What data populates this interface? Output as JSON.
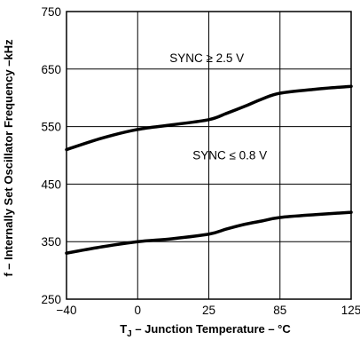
{
  "chart_data": {
    "type": "line",
    "title": "",
    "xlabel": "T",
    "xlabel_sub": "J",
    "xlabel_rest": " – Junction Temperature – °C",
    "ylabel": "f – Internally Set Oscillator Frequency –kHz",
    "x_tick_labels": [
      "−40",
      "0",
      "25",
      "85",
      "125"
    ],
    "y_tick_labels": [
      "250",
      "350",
      "450",
      "550",
      "650",
      "750"
    ],
    "y_ticks": [
      250,
      350,
      450,
      550,
      650,
      750
    ],
    "ylim": [
      250,
      750
    ],
    "grid": true,
    "series": [
      {
        "name": "SYNC ≥ 2.5 V",
        "x": [
          -40,
          -20,
          0,
          12,
          25,
          40,
          55,
          70,
          85,
          105,
          125
        ],
        "y": [
          510,
          530,
          545,
          553,
          562,
          573,
          585,
          598,
          608,
          615,
          620
        ]
      },
      {
        "name": "SYNC ≤ 0.8 V",
        "x": [
          -40,
          -20,
          0,
          12,
          25,
          40,
          55,
          70,
          85,
          105,
          125
        ],
        "y": [
          330,
          341,
          350,
          355,
          363,
          372,
          380,
          386,
          392,
          397,
          401
        ]
      }
    ]
  }
}
